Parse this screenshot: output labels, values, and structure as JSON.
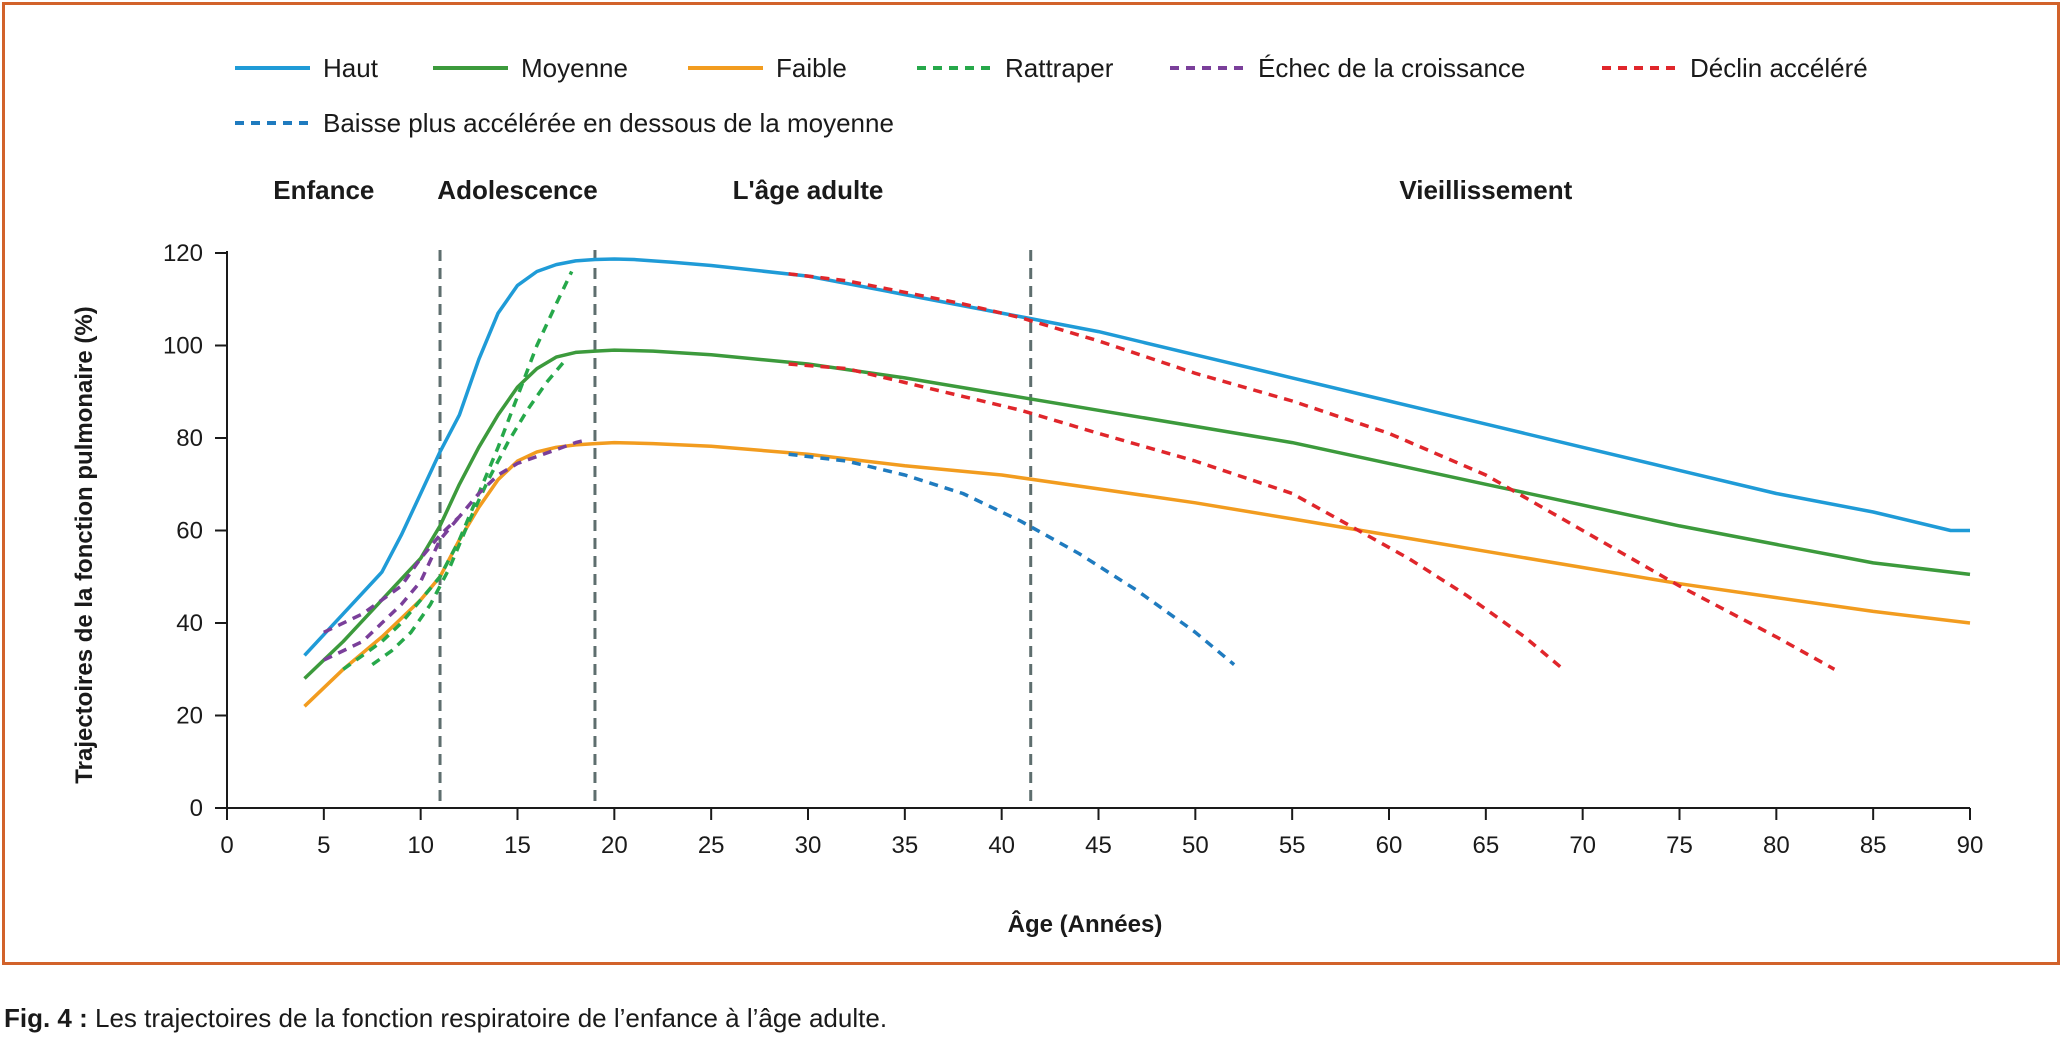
{
  "chart_data": {
    "type": "line",
    "xlabel": "Âge (Années)",
    "ylabel": "Trajectoires de la fonction pulmonaire (%)",
    "xlim": [
      0,
      90
    ],
    "ylim": [
      0,
      120
    ],
    "xticks": [
      0,
      5,
      10,
      15,
      20,
      25,
      30,
      35,
      40,
      45,
      50,
      55,
      60,
      65,
      70,
      75,
      80,
      85,
      90
    ],
    "yticks": [
      0,
      20,
      40,
      60,
      80,
      100,
      120
    ],
    "grid": false,
    "legend_position": "top",
    "phases": [
      {
        "label": "Enfance",
        "x": 5
      },
      {
        "label": "Adolescence",
        "x": 15
      },
      {
        "label": "L'âge adulte",
        "x": 30
      },
      {
        "label": "Vieillissement",
        "x": 65
      }
    ],
    "phase_boundaries": [
      11,
      19,
      41.5
    ],
    "series": [
      {
        "name": "Haut",
        "color": "#1f9bd7",
        "dashed": false,
        "points": [
          [
            4,
            33
          ],
          [
            6,
            42
          ],
          [
            8,
            51
          ],
          [
            9,
            59
          ],
          [
            10,
            68
          ],
          [
            11,
            77
          ],
          [
            12,
            85
          ],
          [
            13,
            97
          ],
          [
            14,
            107
          ],
          [
            15,
            113
          ],
          [
            16,
            116
          ],
          [
            17,
            117.5
          ],
          [
            18,
            118.3
          ],
          [
            19,
            118.6
          ],
          [
            20,
            118.7
          ],
          [
            21,
            118.6
          ],
          [
            23,
            118
          ],
          [
            25,
            117.3
          ],
          [
            30,
            115
          ],
          [
            35,
            111
          ],
          [
            40,
            107
          ],
          [
            45,
            103
          ],
          [
            50,
            98
          ],
          [
            55,
            93
          ],
          [
            60,
            88
          ],
          [
            65,
            83
          ],
          [
            70,
            78
          ],
          [
            75,
            73
          ],
          [
            80,
            68
          ],
          [
            85,
            64
          ],
          [
            89,
            60
          ],
          [
            90,
            60
          ]
        ]
      },
      {
        "name": "Moyenne",
        "color": "#3c9a3c",
        "dashed": false,
        "points": [
          [
            4,
            28
          ],
          [
            6,
            36
          ],
          [
            8,
            45
          ],
          [
            10,
            54
          ],
          [
            11,
            61
          ],
          [
            12,
            70
          ],
          [
            13,
            78
          ],
          [
            14,
            85
          ],
          [
            15,
            91
          ],
          [
            16,
            95
          ],
          [
            17,
            97.5
          ],
          [
            18,
            98.5
          ],
          [
            19,
            98.8
          ],
          [
            20,
            99
          ],
          [
            22,
            98.8
          ],
          [
            25,
            98
          ],
          [
            30,
            96
          ],
          [
            35,
            93
          ],
          [
            40,
            89.5
          ],
          [
            45,
            86
          ],
          [
            50,
            82.5
          ],
          [
            55,
            79
          ],
          [
            60,
            74.5
          ],
          [
            65,
            70
          ],
          [
            70,
            65.5
          ],
          [
            75,
            61
          ],
          [
            80,
            57
          ],
          [
            85,
            53
          ],
          [
            90,
            50.5
          ]
        ]
      },
      {
        "name": "Faible",
        "color": "#f29c1f",
        "dashed": false,
        "points": [
          [
            4,
            22
          ],
          [
            6,
            30
          ],
          [
            8,
            37
          ],
          [
            10,
            45
          ],
          [
            11,
            50
          ],
          [
            12,
            58
          ],
          [
            13,
            65
          ],
          [
            14,
            71
          ],
          [
            15,
            75
          ],
          [
            16,
            77
          ],
          [
            17,
            78
          ],
          [
            18,
            78.5
          ],
          [
            19,
            78.8
          ],
          [
            20,
            79
          ],
          [
            22,
            78.8
          ],
          [
            25,
            78.2
          ],
          [
            30,
            76.5
          ],
          [
            35,
            74
          ],
          [
            40,
            72
          ],
          [
            45,
            69
          ],
          [
            50,
            66
          ],
          [
            55,
            62.5
          ],
          [
            60,
            59
          ],
          [
            65,
            55.5
          ],
          [
            70,
            52
          ],
          [
            75,
            48.5
          ],
          [
            80,
            45.5
          ],
          [
            85,
            42.5
          ],
          [
            90,
            40
          ]
        ]
      },
      {
        "name": "Rattraper",
        "color": "#26a84a",
        "dashed": true,
        "points": [
          [
            6,
            30
          ],
          [
            7,
            33
          ],
          [
            8,
            36
          ],
          [
            9,
            40
          ],
          [
            10,
            45
          ],
          [
            11,
            50
          ],
          [
            12,
            58
          ],
          [
            13,
            68
          ],
          [
            14,
            78
          ],
          [
            15,
            89
          ],
          [
            16,
            100
          ],
          [
            17,
            109
          ],
          [
            17.8,
            116
          ]
        ]
      },
      {
        "name": "Rattraper",
        "color": "#26a84a",
        "dashed": true,
        "points": [
          [
            7.5,
            31
          ],
          [
            8.5,
            34
          ],
          [
            9.5,
            38
          ],
          [
            10.5,
            44
          ],
          [
            11.5,
            52
          ],
          [
            12.5,
            62
          ],
          [
            13.5,
            71
          ],
          [
            14.5,
            79
          ],
          [
            15.5,
            86
          ],
          [
            16.5,
            92
          ],
          [
            17.5,
            97
          ]
        ]
      },
      {
        "name": "Échec de la croissance",
        "color": "#7a3f9a",
        "dashed": true,
        "points": [
          [
            5,
            38
          ],
          [
            7,
            42
          ],
          [
            9,
            48
          ],
          [
            10,
            54
          ],
          [
            11,
            59
          ],
          [
            12,
            63
          ],
          [
            13,
            68
          ],
          [
            14,
            72
          ],
          [
            15,
            74.5
          ],
          [
            16,
            76
          ],
          [
            17,
            77.5
          ],
          [
            18,
            79
          ],
          [
            18.5,
            79.5
          ]
        ]
      },
      {
        "name": "Échec de la croissance",
        "color": "#7a3f9a",
        "dashed": true,
        "points": [
          [
            5,
            32
          ],
          [
            7,
            36
          ],
          [
            8,
            40
          ],
          [
            9,
            44
          ],
          [
            10,
            49
          ],
          [
            11,
            58
          ],
          [
            12,
            63
          ]
        ]
      },
      {
        "name": "Déclin accéléré",
        "color": "#e0262b",
        "dashed": true,
        "points": [
          [
            29,
            115.5
          ],
          [
            32,
            114
          ],
          [
            35,
            111.5
          ],
          [
            38,
            109
          ],
          [
            41,
            106
          ],
          [
            45,
            101
          ],
          [
            50,
            94
          ],
          [
            55,
            88
          ],
          [
            60,
            81
          ],
          [
            65,
            72
          ],
          [
            70,
            60
          ],
          [
            75,
            48
          ],
          [
            80,
            37
          ],
          [
            83,
            30
          ]
        ]
      },
      {
        "name": "Déclin accéléré",
        "color": "#e0262b",
        "dashed": true,
        "points": [
          [
            29,
            96
          ],
          [
            32,
            95
          ],
          [
            35,
            92
          ],
          [
            38,
            89
          ],
          [
            41,
            86
          ],
          [
            45,
            81
          ],
          [
            50,
            75
          ],
          [
            55,
            68
          ],
          [
            58,
            61
          ],
          [
            61,
            54
          ],
          [
            64,
            46
          ],
          [
            67,
            37
          ],
          [
            69,
            30
          ]
        ]
      },
      {
        "name": "Baisse plus accélérée en dessous de la moyenne",
        "color": "#1f7bbf",
        "dashed": true,
        "points": [
          [
            29,
            76.5
          ],
          [
            32,
            75
          ],
          [
            35,
            72
          ],
          [
            38,
            68
          ],
          [
            41,
            62
          ],
          [
            44,
            55
          ],
          [
            47,
            47
          ],
          [
            50,
            38
          ],
          [
            52,
            31
          ]
        ]
      }
    ]
  },
  "legend": [
    {
      "label": "Haut",
      "color": "#1f9bd7",
      "dashed": false
    },
    {
      "label": "Moyenne",
      "color": "#3c9a3c",
      "dashed": false
    },
    {
      "label": "Faible",
      "color": "#f29c1f",
      "dashed": false
    },
    {
      "label": "Rattraper",
      "color": "#26a84a",
      "dashed": true
    },
    {
      "label": "Échec de la croissance",
      "color": "#7a3f9a",
      "dashed": true
    },
    {
      "label": "Déclin accéléré",
      "color": "#e0262b",
      "dashed": true
    },
    {
      "label": "Baisse plus accélérée en dessous de la moyenne",
      "color": "#1f7bbf",
      "dashed": true
    }
  ],
  "caption": {
    "label": "Fig. 4 :",
    "text": " Les trajectoires de la fonction respiratoire de l’enfance à l’âge adulte."
  },
  "colors": {
    "frame": "#d2622a",
    "axis": "#1a1a1a",
    "phase_line": "#5e6e6e"
  }
}
